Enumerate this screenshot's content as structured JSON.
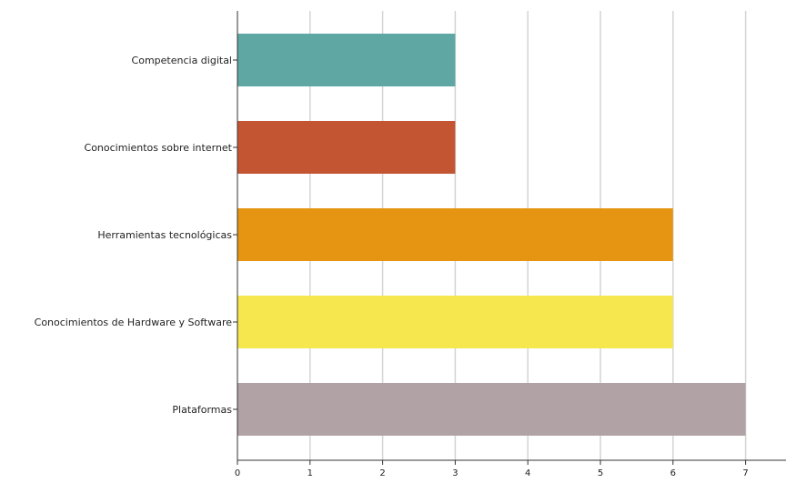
{
  "chart_data": {
    "type": "bar",
    "orientation": "horizontal",
    "categories": [
      "Competencia digital",
      "Conocimientos sobre internet",
      "Herramientas tecnológicas",
      "Conocimientos de Hardware y Software",
      "Plataformas"
    ],
    "values": [
      3,
      3,
      6,
      6,
      7
    ],
    "colors": [
      "#5ea7a2",
      "#c35533",
      "#e59512",
      "#f5e74d",
      "#b1a2a6"
    ],
    "xlim": [
      0,
      7.5
    ],
    "x_ticks": [
      0,
      1,
      2,
      3,
      4,
      5,
      6,
      7
    ],
    "grid": true,
    "legend": "none"
  }
}
